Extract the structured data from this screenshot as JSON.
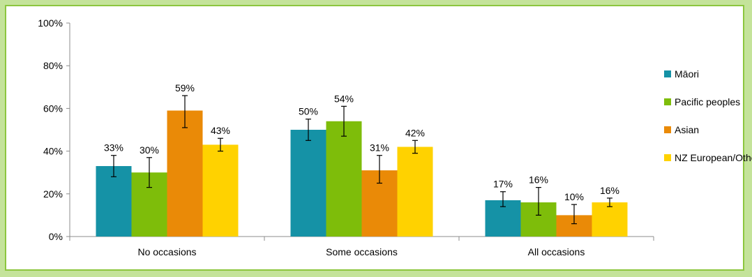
{
  "chart_data": {
    "type": "bar",
    "categories": [
      "No occasions",
      "Some occasions",
      "All occasions"
    ],
    "series": [
      {
        "name": "Māori",
        "color": "#1592a6",
        "values": [
          33,
          50,
          17
        ],
        "error_low": [
          28,
          45,
          14
        ],
        "error_high": [
          38,
          55,
          21
        ],
        "labels": [
          "33%",
          "50%",
          "17%"
        ]
      },
      {
        "name": "Pacific peoples",
        "color": "#7ebd0a",
        "values": [
          30,
          54,
          16
        ],
        "error_low": [
          23,
          47,
          10
        ],
        "error_high": [
          37,
          61,
          23
        ],
        "labels": [
          "30%",
          "54%",
          "16%"
        ]
      },
      {
        "name": "Asian",
        "color": "#ea8a07",
        "values": [
          59,
          31,
          10
        ],
        "error_low": [
          51,
          25,
          6
        ],
        "error_high": [
          66,
          38,
          15
        ],
        "labels": [
          "59%",
          "31%",
          "10%"
        ]
      },
      {
        "name": "NZ European/Other",
        "color": "#ffd200",
        "values": [
          43,
          42,
          16
        ],
        "error_low": [
          40,
          39,
          14
        ],
        "error_high": [
          46,
          45,
          18
        ],
        "labels": [
          "43%",
          "42%",
          "16%"
        ]
      }
    ],
    "ylim": [
      0,
      100
    ],
    "yticks": [
      "0%",
      "20%",
      "40%",
      "60%",
      "80%",
      "100%"
    ],
    "legend_position": "right",
    "grid": false,
    "title": "",
    "xlabel": "",
    "ylabel": ""
  }
}
